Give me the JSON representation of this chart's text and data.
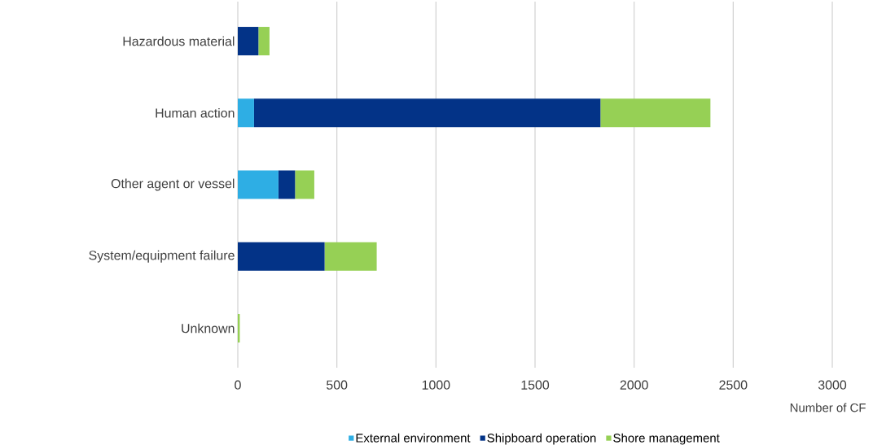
{
  "chart_data": {
    "type": "bar",
    "orientation": "horizontal",
    "stacked": true,
    "xlabel": "Number of CF",
    "categories": [
      "Hazardous material",
      "Human action",
      "Other agent or vessel",
      "System/equipment failure",
      "Unknown"
    ],
    "series": [
      {
        "name": "External environment",
        "color": "#2eaee4",
        "values": [
          0,
          82,
          205,
          0,
          0
        ]
      },
      {
        "name": "Shipboard operation",
        "color": "#033387",
        "values": [
          104,
          1748,
          84,
          438,
          0
        ]
      },
      {
        "name": "Shore management",
        "color": "#96d055",
        "values": [
          56,
          555,
          97,
          263,
          10
        ]
      }
    ],
    "xlim": [
      0,
      3000
    ],
    "xticks": [
      0,
      500,
      1000,
      1500,
      2000,
      2500,
      3000
    ],
    "grid": "x",
    "legend": "bottom"
  }
}
